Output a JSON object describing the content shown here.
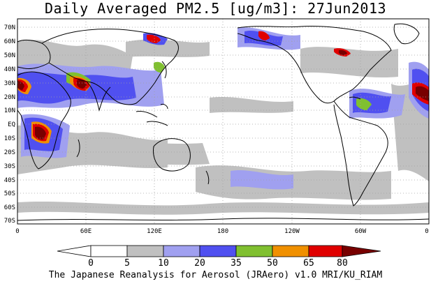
{
  "title": "Daily Averaged PM2.5 [ug/m3]: 27Jun2013",
  "footer": "The Japanese Reanalysis for Aerosol (JRAero) v1.0 MRI/KU_RIAM",
  "lat_labels": [
    "70N",
    "60N",
    "50N",
    "40N",
    "30N",
    "20N",
    "10N",
    "EQ",
    "10S",
    "20S",
    "30S",
    "40S",
    "50S",
    "60S",
    "70S"
  ],
  "lon_labels": [
    "0",
    "60E",
    "120E",
    "180",
    "120W",
    "60W",
    "0"
  ],
  "colorbar": {
    "labels": [
      "0",
      "5",
      "10",
      "20",
      "35",
      "50",
      "65",
      "80"
    ],
    "colors": [
      "#ffffff",
      "#c0c0c0",
      "#a0a0f0",
      "#5050f0",
      "#80c030",
      "#f09000",
      "#e00000",
      "#780000"
    ]
  },
  "map_colors": {
    "ocean": "#ffffff",
    "coast": "#000000",
    "grid": "#a0a0a0"
  }
}
